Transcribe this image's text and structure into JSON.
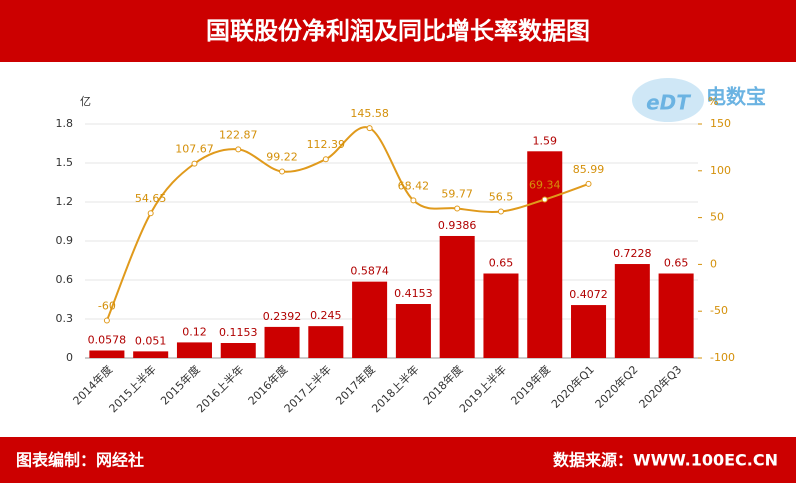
{
  "chart_data": {
    "type": "bar_line",
    "title": "国联股份净利润及同比增长率数据图",
    "footer_left": "图表编制：网经社",
    "footer_right": "数据来源：WWW.100EC.CN",
    "logo": {
      "mark": "eDT",
      "name": "电数宝"
    },
    "y_label": "亿",
    "y2_label": "%",
    "categories": [
      "2014年度",
      "2015上半年",
      "2015年度",
      "2016上半年",
      "2016年度",
      "2017上半年",
      "2017年度",
      "2018上半年",
      "2018年度",
      "2019上半年",
      "2019年度",
      "2020年Q1",
      "2020年Q2",
      "2020年Q3"
    ],
    "series": [
      {
        "name": "净利润",
        "color": "#cc0000",
        "values": [
          0.0578,
          0.051,
          0.12,
          0.1153,
          0.2392,
          0.245,
          0.5874,
          0.4153,
          0.9386,
          0.65,
          1.59,
          0.4072,
          0.7228,
          0.65
        ]
      },
      {
        "name": "同比增长率",
        "color": "#e09a1c",
        "axis": "y2",
        "values": [
          -60,
          54.65,
          107.67,
          122.87,
          99.22,
          112.39,
          145.58,
          68.42,
          59.77,
          56.5,
          69.34,
          85.99,
          null,
          null
        ]
      }
    ],
    "ylim": [
      0,
      1.8
    ],
    "yticks": [
      0,
      0.3,
      0.6,
      0.9,
      1.2,
      1.5,
      1.8
    ],
    "y2lim": [
      -100,
      150
    ],
    "y2ticks": [
      -100,
      -50,
      0,
      50,
      100,
      150
    ],
    "grid": true
  }
}
